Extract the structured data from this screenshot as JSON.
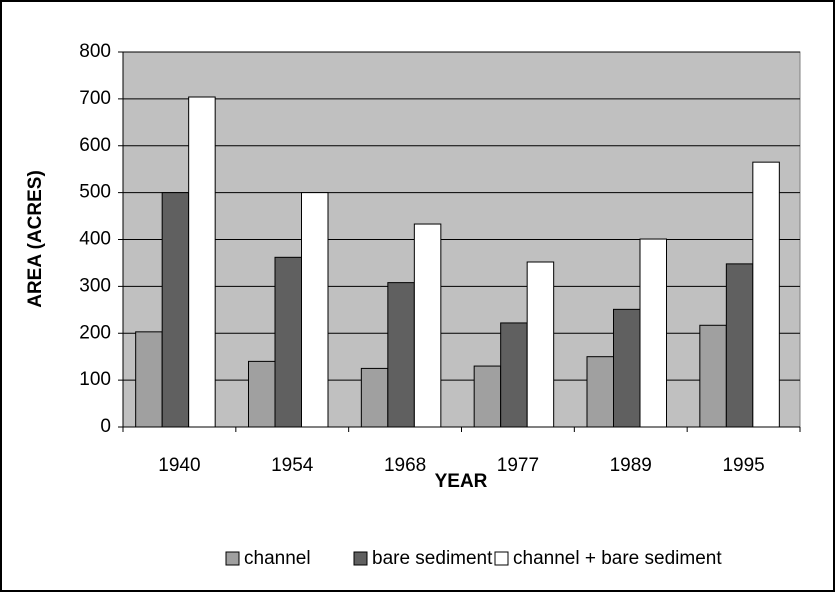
{
  "chart_data": {
    "type": "bar",
    "xlabel": "YEAR",
    "ylabel": "AREA (ACRES)",
    "categories": [
      "1940",
      "1954",
      "1968",
      "1977",
      "1989",
      "1995"
    ],
    "series": [
      {
        "name": "channel",
        "color": "#a0a0a0",
        "values": [
          203,
          140,
          125,
          130,
          150,
          217
        ]
      },
      {
        "name": "bare sediment",
        "color": "#606060",
        "values": [
          500,
          362,
          308,
          222,
          251,
          348
        ]
      },
      {
        "name": "channel + bare sediment",
        "color": "#ffffff",
        "values": [
          704,
          500,
          433,
          352,
          401,
          565
        ]
      }
    ],
    "ylim": [
      0,
      800
    ],
    "yticks": [
      0,
      100,
      200,
      300,
      400,
      500,
      600,
      700,
      800
    ],
    "grid": true,
    "plot_background": "#c0c0c0",
    "legend": "bottom"
  }
}
